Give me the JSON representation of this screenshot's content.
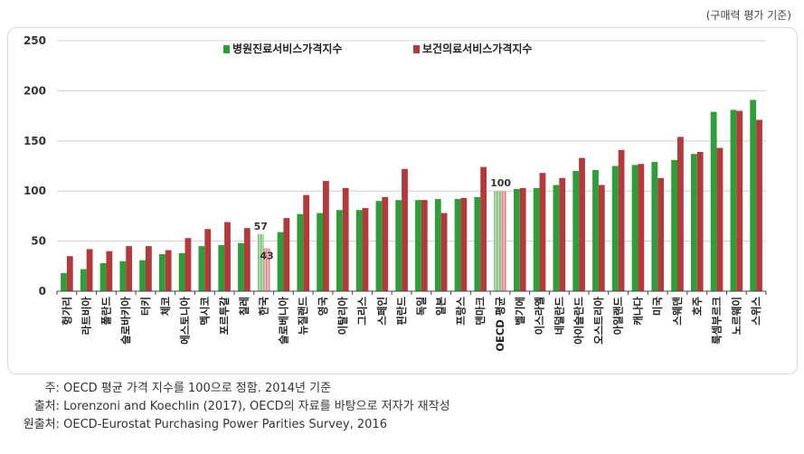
{
  "unit_note": "(구매력 평가 기준)",
  "chart_data": {
    "type": "bar",
    "title": "",
    "xlabel": "",
    "ylabel": "",
    "ylim": [
      0,
      250
    ],
    "yticks": [
      0,
      50,
      100,
      150,
      200,
      250
    ],
    "grid": true,
    "legend_position": "top-center",
    "categories": [
      "헝가리",
      "라트비아",
      "폴란드",
      "슬로바키아",
      "터키",
      "체코",
      "에스토니아",
      "멕시코",
      "포르투갈",
      "칠레",
      "한국",
      "슬로베니아",
      "뉴질랜드",
      "영국",
      "이탈리아",
      "그리스",
      "스페인",
      "핀란드",
      "독일",
      "일본",
      "프랑스",
      "덴마크",
      "OECD 평균",
      "벨기에",
      "이스라엘",
      "네덜란드",
      "아이슬란드",
      "오스트리아",
      "아일랜드",
      "캐나다",
      "미국",
      "스웨덴",
      "호주",
      "룩셈부르크",
      "노르웨이",
      "스위스"
    ],
    "series": [
      {
        "name": "병원진료서비스가격지수",
        "color": "#2e9e3a",
        "values": [
          18,
          22,
          28,
          30,
          31,
          37,
          38,
          45,
          46,
          48,
          57,
          59,
          77,
          78,
          81,
          81,
          90,
          91,
          91,
          92,
          92,
          94,
          100,
          102,
          103,
          106,
          120,
          121,
          125,
          126,
          129,
          131,
          137,
          179,
          181,
          191
        ]
      },
      {
        "name": "보건의료서비스가격지수",
        "color": "#b3393b",
        "values": [
          35,
          42,
          40,
          45,
          45,
          41,
          53,
          62,
          69,
          63,
          43,
          73,
          96,
          110,
          103,
          83,
          94,
          122,
          91,
          78,
          93,
          124,
          100,
          103,
          118,
          113,
          133,
          106,
          141,
          127,
          113,
          154,
          139,
          143,
          180,
          171
        ]
      }
    ],
    "data_labels": [
      {
        "category": "한국",
        "series": 0,
        "text": "57"
      },
      {
        "category": "한국",
        "series": 1,
        "text": "43"
      },
      {
        "category": "OECD 평균",
        "series": 0,
        "text": "100"
      }
    ],
    "highlight_categories": [
      "한국",
      "OECD 평균"
    ]
  },
  "notes": [
    {
      "label": "주:",
      "text": "OECD 평균 가격 지수를 100으로 정함. 2014년 기준"
    },
    {
      "label": "출처:",
      "text": "Lorenzoni and Koechlin (2017), OECD의 자료를 바탕으로 저자가 재작성"
    },
    {
      "label": "원출처:",
      "text": "OECD-Eurostat Purchasing Power Parities Survey, 2016"
    }
  ]
}
